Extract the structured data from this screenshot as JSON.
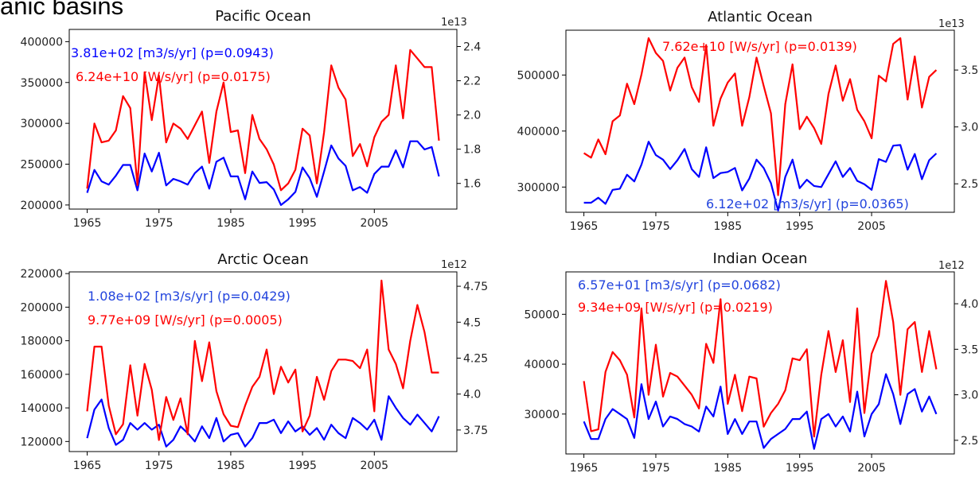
{
  "page_title": "anic basins",
  "colors": {
    "transport": "#0000ff",
    "heat": "#ff0000",
    "annot_blue": "#2244dd",
    "axis": "#000000"
  },
  "chart_data": [
    {
      "type": "line",
      "title": "Pacific Ocean",
      "x": [
        1965,
        1966,
        1967,
        1968,
        1969,
        1970,
        1971,
        1972,
        1973,
        1974,
        1975,
        1976,
        1977,
        1978,
        1979,
        1980,
        1981,
        1982,
        1983,
        1984,
        1985,
        1986,
        1987,
        1988,
        1989,
        1990,
        1991,
        1992,
        1993,
        1994,
        1995,
        1996,
        1997,
        1998,
        1999,
        2000,
        2001,
        2002,
        2003,
        2004,
        2005,
        2006,
        2007,
        2008,
        2009,
        2010,
        2011,
        2012,
        2013,
        2014
      ],
      "x_ticks": [
        1965,
        1975,
        1985,
        1995,
        2005
      ],
      "xlim": [
        1962.5,
        2016.5
      ],
      "left_axis": {
        "ylim": [
          195000,
          415000
        ],
        "ticks": [
          200000,
          250000,
          300000,
          350000,
          400000
        ]
      },
      "right_axis": {
        "ylim": [
          1.45,
          2.5
        ],
        "ticks": [
          1.6,
          1.8,
          2.0,
          2.2,
          2.4
        ],
        "multiplier": "1e13"
      },
      "series": [
        {
          "axis": "left",
          "color": "#0000ff",
          "values": [
            215000,
            243000,
            229000,
            225000,
            236000,
            249000,
            249000,
            218000,
            263000,
            241000,
            264000,
            224000,
            232000,
            229000,
            225000,
            239000,
            247000,
            220000,
            253000,
            258000,
            235000,
            235000,
            207000,
            241000,
            227000,
            228000,
            219000,
            200000,
            207000,
            216000,
            246000,
            233000,
            210000,
            241000,
            273000,
            257000,
            248000,
            218000,
            222000,
            215000,
            238000,
            247000,
            247000,
            267000,
            246000,
            278000,
            278000,
            268000,
            271000,
            235000
          ]
        },
        {
          "axis": "right",
          "color": "#ff0000",
          "values": [
            1.57,
            1.95,
            1.84,
            1.85,
            1.91,
            2.11,
            2.04,
            1.59,
            2.25,
            1.97,
            2.23,
            1.84,
            1.95,
            1.92,
            1.86,
            1.94,
            2.02,
            1.72,
            2.02,
            2.19,
            1.9,
            1.91,
            1.66,
            2.0,
            1.86,
            1.8,
            1.71,
            1.56,
            1.6,
            1.68,
            1.92,
            1.88,
            1.6,
            1.9,
            2.29,
            2.16,
            2.09,
            1.76,
            1.83,
            1.7,
            1.87,
            1.96,
            2.0,
            2.29,
            1.98,
            2.38,
            2.33,
            2.28,
            2.28,
            1.85
          ]
        }
      ],
      "annotations": [
        {
          "text": "3.81e+02 [m3/s/yr] (p=0.0943)",
          "color": "#0000ff"
        },
        {
          "text": "6.24e+10 [W/s/yr]   (p=0.0175)",
          "color": "#ff0000"
        }
      ]
    },
    {
      "type": "line",
      "title": "Atlantic Ocean",
      "x": [
        1965,
        1966,
        1967,
        1968,
        1969,
        1970,
        1971,
        1972,
        1973,
        1974,
        1975,
        1976,
        1977,
        1978,
        1979,
        1980,
        1981,
        1982,
        1983,
        1984,
        1985,
        1986,
        1987,
        1988,
        1989,
        1990,
        1991,
        1992,
        1993,
        1994,
        1995,
        1996,
        1997,
        1998,
        1999,
        2000,
        2001,
        2002,
        2003,
        2004,
        2005,
        2006,
        2007,
        2008,
        2009,
        2010,
        2011,
        2012,
        2013,
        2014
      ],
      "x_ticks": [
        1965,
        1975,
        1985,
        1995,
        2005
      ],
      "xlim": [
        1962.5,
        2016.5
      ],
      "left_axis": {
        "ylim": [
          255000,
          580000
        ],
        "ticks": [
          300000,
          400000,
          500000
        ]
      },
      "right_axis": {
        "ylim": [
          2.25,
          3.85
        ],
        "ticks": [
          2.5,
          3.0,
          3.5
        ],
        "multiplier": "1e13"
      },
      "series": [
        {
          "axis": "left",
          "color": "#0000ff",
          "values": [
            272000,
            272000,
            281000,
            270000,
            295000,
            297000,
            322000,
            310000,
            340000,
            381000,
            357000,
            349000,
            332000,
            348000,
            368000,
            332000,
            318000,
            371000,
            316000,
            325000,
            327000,
            334000,
            294000,
            315000,
            349000,
            334000,
            307000,
            258000,
            318000,
            349000,
            298000,
            313000,
            302000,
            300000,
            323000,
            346000,
            318000,
            334000,
            311000,
            305000,
            295000,
            350000,
            345000,
            374000,
            375000,
            331000,
            359000,
            314000,
            348000,
            360000
          ]
        },
        {
          "axis": "right",
          "color": "#ff0000",
          "values": [
            2.77,
            2.73,
            2.89,
            2.76,
            3.05,
            3.1,
            3.38,
            3.2,
            3.46,
            3.78,
            3.65,
            3.58,
            3.32,
            3.52,
            3.61,
            3.35,
            3.22,
            3.72,
            3.01,
            3.25,
            3.39,
            3.47,
            3.01,
            3.26,
            3.61,
            3.36,
            3.12,
            2.4,
            3.2,
            3.55,
            2.98,
            3.09,
            2.99,
            2.85,
            3.29,
            3.54,
            3.23,
            3.42,
            3.15,
            3.05,
            2.9,
            3.45,
            3.4,
            3.73,
            3.78,
            3.24,
            3.62,
            3.17,
            3.44,
            3.5
          ]
        }
      ],
      "annotations": [
        {
          "text": "7.62e+10 [W/s/yr]  (p=0.0139)",
          "color": "#ff0000"
        },
        {
          "text": "6.12e+02 [m3/s/yr] (p=0.0365)",
          "color": "#2244dd"
        }
      ]
    },
    {
      "type": "line",
      "title": "Arctic Ocean",
      "x": [
        1965,
        1966,
        1967,
        1968,
        1969,
        1970,
        1971,
        1972,
        1973,
        1974,
        1975,
        1976,
        1977,
        1978,
        1979,
        1980,
        1981,
        1982,
        1983,
        1984,
        1985,
        1986,
        1987,
        1988,
        1989,
        1990,
        1991,
        1992,
        1993,
        1994,
        1995,
        1996,
        1997,
        1998,
        1999,
        2000,
        2001,
        2002,
        2003,
        2004,
        2005,
        2006,
        2007,
        2008,
        2009,
        2010,
        2011,
        2012,
        2013,
        2014
      ],
      "x_ticks": [
        1965,
        1975,
        1985,
        1995,
        2005
      ],
      "xlim": [
        1962.5,
        2016.5
      ],
      "left_axis": {
        "ylim": [
          114000,
          221000
        ],
        "ticks": [
          120000,
          140000,
          160000,
          180000,
          200000,
          220000
        ]
      },
      "right_axis": {
        "ylim": [
          3.6,
          4.85
        ],
        "ticks": [
          3.75,
          4.0,
          4.25,
          4.5,
          4.75
        ],
        "multiplier": "1e12"
      },
      "series": [
        {
          "axis": "left",
          "color": "#0000ff",
          "values": [
            122000,
            139000,
            145000,
            128000,
            118000,
            121000,
            131000,
            127000,
            131000,
            127000,
            130000,
            117000,
            121000,
            129000,
            125000,
            120000,
            129000,
            122000,
            134000,
            120000,
            124000,
            125000,
            117000,
            122000,
            131000,
            131000,
            133000,
            125000,
            132000,
            126000,
            129000,
            124000,
            128000,
            121000,
            130000,
            125000,
            122000,
            134000,
            131000,
            127000,
            133000,
            121000,
            147000,
            140000,
            134000,
            130000,
            136000,
            131000,
            126000,
            135000
          ]
        },
        {
          "axis": "right",
          "color": "#ff0000",
          "values": [
            3.88,
            4.33,
            4.33,
            3.92,
            3.72,
            3.79,
            4.2,
            3.85,
            4.21,
            4.03,
            3.68,
            3.98,
            3.82,
            3.97,
            3.72,
            4.37,
            4.09,
            4.36,
            4.02,
            3.86,
            3.78,
            3.77,
            3.92,
            4.05,
            4.12,
            4.31,
            4.0,
            4.19,
            4.08,
            4.17,
            3.74,
            3.85,
            4.12,
            3.96,
            4.16,
            4.24,
            4.24,
            4.23,
            4.18,
            4.31,
            3.88,
            4.79,
            4.31,
            4.21,
            4.04,
            4.37,
            4.62,
            4.43,
            4.15,
            4.15
          ]
        }
      ],
      "annotations": [
        {
          "text": "1.08e+02 [m3/s/yr] (p=0.0429)",
          "color": "#2244dd"
        },
        {
          "text": "9.77e+09 [W/s/yr]   (p=0.0005)",
          "color": "#ff0000"
        }
      ]
    },
    {
      "type": "line",
      "title": "Indian Ocean",
      "x": [
        1965,
        1966,
        1967,
        1968,
        1969,
        1970,
        1971,
        1972,
        1973,
        1974,
        1975,
        1976,
        1977,
        1978,
        1979,
        1980,
        1981,
        1982,
        1983,
        1984,
        1985,
        1986,
        1987,
        1988,
        1989,
        1990,
        1991,
        1992,
        1993,
        1994,
        1995,
        1996,
        1997,
        1998,
        1999,
        2000,
        2001,
        2002,
        2003,
        2004,
        2005,
        2006,
        2007,
        2008,
        2009,
        2010,
        2011,
        2012,
        2013,
        2014
      ],
      "x_ticks": [
        1965,
        1975,
        1985,
        1995,
        2005
      ],
      "xlim": [
        1962.5,
        2016.5
      ],
      "left_axis": {
        "ylim": [
          22000,
          58500
        ],
        "ticks": [
          30000,
          40000,
          50000
        ]
      },
      "right_axis": {
        "ylim": [
          2.35,
          4.35
        ],
        "ticks": [
          2.5,
          3.0,
          3.5,
          4.0
        ],
        "multiplier": "1e12"
      },
      "series": [
        {
          "axis": "left",
          "color": "#0000ff",
          "values": [
            28500,
            25000,
            25000,
            29000,
            31000,
            30000,
            29000,
            25200,
            36000,
            29000,
            32500,
            27500,
            29500,
            29000,
            28000,
            27500,
            26500,
            31500,
            29500,
            35500,
            26000,
            29000,
            26000,
            28500,
            28500,
            23200,
            25000,
            26000,
            27000,
            29000,
            29000,
            30500,
            23000,
            29000,
            30000,
            27500,
            29500,
            26500,
            34500,
            25500,
            30000,
            32000,
            38000,
            34000,
            28000,
            34000,
            35000,
            30500,
            33500,
            30000
          ]
        },
        {
          "axis": "right",
          "color": "#ff0000",
          "values": [
            3.15,
            2.6,
            2.62,
            3.25,
            3.47,
            3.38,
            3.22,
            2.75,
            3.95,
            3.0,
            3.55,
            2.98,
            3.24,
            3.2,
            3.1,
            3.0,
            2.85,
            3.56,
            3.35,
            4.05,
            2.9,
            3.22,
            2.82,
            3.2,
            3.18,
            2.65,
            2.8,
            2.9,
            3.05,
            3.4,
            3.38,
            3.5,
            2.54,
            3.22,
            3.7,
            3.25,
            3.6,
            2.92,
            3.95,
            2.8,
            3.45,
            3.65,
            4.25,
            3.8,
            3.0,
            3.72,
            3.8,
            3.25,
            3.7,
            3.28
          ]
        }
      ],
      "annotations": [
        {
          "text": "6.57e+01 [m3/s/yr] (p=0.0682)",
          "color": "#2244dd"
        },
        {
          "text": "9.34e+09 [W/s/yr]   (p=0.0219)",
          "color": "#ff0000"
        }
      ]
    }
  ]
}
